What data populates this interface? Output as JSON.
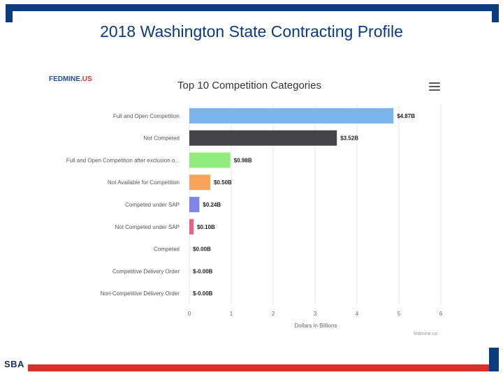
{
  "slide": {
    "title": "2018 Washington State Contracting Profile",
    "logo_text": "SBA",
    "colors": {
      "brand_blue": "#0b3a7e",
      "brand_red": "#d6312b"
    }
  },
  "brand": {
    "name": "FEDMINE",
    "suffix": ".US"
  },
  "credit": "fedmine.us",
  "chart_data": {
    "type": "bar",
    "orientation": "horizontal",
    "title": "Top 10 Competition Categories",
    "xlabel": "Dollars in Billions",
    "ylabel": "",
    "xlim": [
      0,
      6
    ],
    "x_ticks": [
      "0",
      "1",
      "2",
      "3",
      "4",
      "5",
      "6"
    ],
    "grid": true,
    "categories": [
      "Full and Open Competition",
      "Not Competed",
      "Full and Open Competition after exclusion o...",
      "Not Available for Competition",
      "Competed under SAP",
      "Not Competed under SAP",
      "Competed",
      "Competitive Delivery Order",
      "Non-Competitive Delivery Order"
    ],
    "values": [
      4.87,
      3.52,
      0.98,
      0.5,
      0.24,
      0.1,
      0.0,
      0.0,
      0.0
    ],
    "data_labels": [
      "$4.87B",
      "$3.52B",
      "$0.98B",
      "$0.50B",
      "$0.24B",
      "$0.10B",
      "$0.00B",
      "$-0.00B",
      "$-0.00B"
    ],
    "colors": [
      "#7cb5ec",
      "#434348",
      "#90ed7d",
      "#f7a35c",
      "#8085e9",
      "#f15c80",
      "#e4d354",
      "#2b908f",
      "#f45b5b"
    ]
  }
}
